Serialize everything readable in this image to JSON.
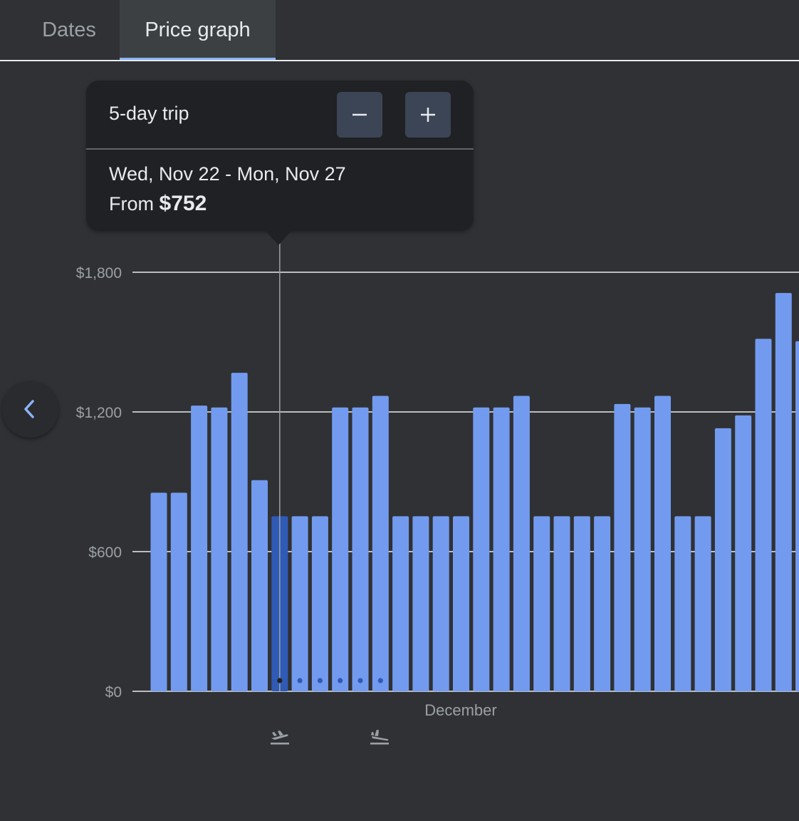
{
  "tabs": [
    {
      "label": "Dates",
      "selected": false
    },
    {
      "label": "Price graph",
      "selected": true
    }
  ],
  "popup": {
    "trip_length": "5-day trip",
    "dates": "Wed, Nov 22 - Mon, Nov 27",
    "from_label": "From",
    "price": "$752"
  },
  "icons": {
    "minus": "minus-icon",
    "plus": "plus-icon",
    "prev": "chevron-left-icon",
    "departure": "flight-takeoff-icon",
    "return": "flight-land-icon"
  },
  "colors": {
    "bar": "#729bf0",
    "bar_selected": "#2f5bb7",
    "accent": "#8ab4f8",
    "background": "#303134"
  },
  "chart_data": {
    "type": "bar",
    "ylim": [
      0,
      1800
    ],
    "yticks": [
      "$0",
      "$600",
      "$1,200",
      "$1,800"
    ],
    "month_label": "December",
    "selected_index": 6,
    "trip_days": 5,
    "values": [
      853,
      853,
      1227,
      1219,
      1368,
      907,
      752,
      752,
      752,
      1219,
      1219,
      1269,
      752,
      752,
      752,
      752,
      1219,
      1219,
      1269,
      752,
      752,
      752,
      752,
      1234,
      1219,
      1269,
      752,
      752,
      1130,
      1185,
      1514,
      1711,
      1504
    ]
  }
}
